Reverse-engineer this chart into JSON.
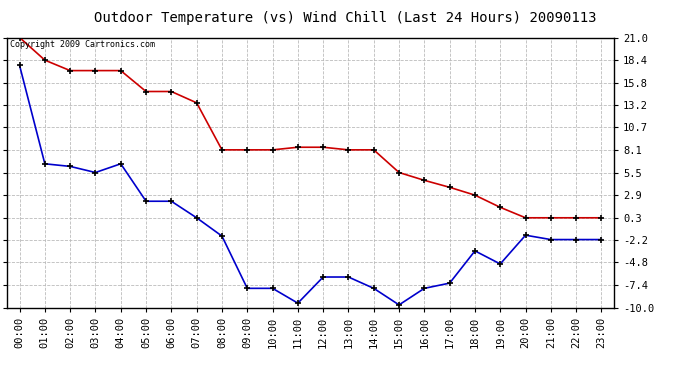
{
  "title": "Outdoor Temperature (vs) Wind Chill (Last 24 Hours) 20090113",
  "copyright_text": "Copyright 2009 Cartronics.com",
  "x_labels": [
    "00:00",
    "01:00",
    "02:00",
    "03:00",
    "04:00",
    "05:00",
    "06:00",
    "07:00",
    "08:00",
    "09:00",
    "10:00",
    "11:00",
    "12:00",
    "13:00",
    "14:00",
    "15:00",
    "16:00",
    "17:00",
    "18:00",
    "19:00",
    "20:00",
    "21:00",
    "22:00",
    "23:00"
  ],
  "y_ticks": [
    21.0,
    18.4,
    15.8,
    13.2,
    10.7,
    8.1,
    5.5,
    2.9,
    0.3,
    -2.2,
    -4.8,
    -7.4,
    -10.0
  ],
  "ylim": [
    -10.0,
    21.0
  ],
  "temp_data": [
    21.0,
    18.4,
    17.2,
    17.2,
    17.2,
    14.8,
    14.8,
    13.5,
    8.1,
    8.1,
    8.1,
    8.4,
    8.4,
    8.1,
    8.1,
    5.5,
    4.6,
    3.8,
    2.9,
    1.5,
    0.3,
    0.3,
    0.3,
    0.3
  ],
  "windchill_data": [
    17.8,
    6.5,
    6.2,
    5.5,
    6.5,
    2.2,
    2.2,
    0.3,
    -1.8,
    -7.8,
    -7.8,
    -9.5,
    -6.5,
    -6.5,
    -7.8,
    -9.7,
    -7.8,
    -7.2,
    -3.5,
    -5.0,
    -1.7,
    -2.2,
    -2.2,
    -2.2
  ],
  "temp_color": "#cc0000",
  "windchill_color": "#0000cc",
  "bg_color": "#ffffff",
  "grid_color": "#bbbbbb",
  "title_fontsize": 10,
  "copyright_fontsize": 6,
  "tick_fontsize": 7.5
}
